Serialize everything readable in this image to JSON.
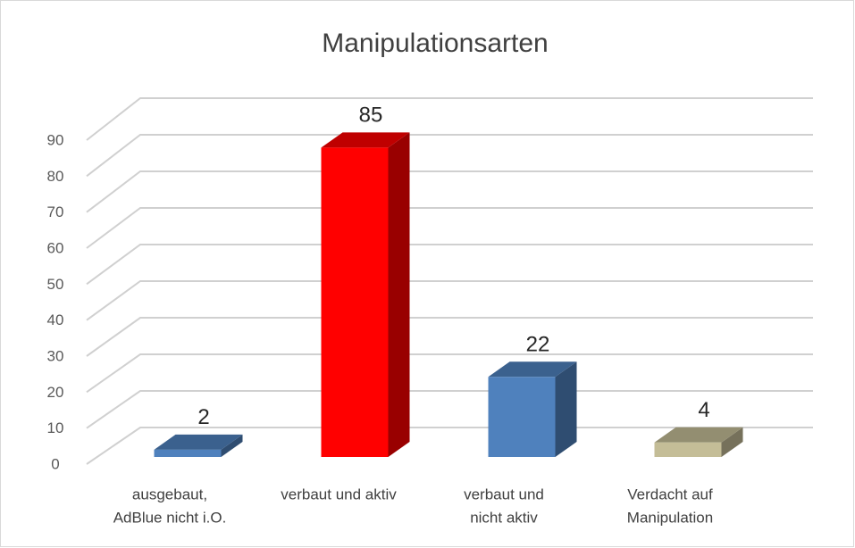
{
  "chart_data": {
    "type": "bar3d",
    "title": "Manipulationsarten",
    "categories": [
      [
        "ausgebaut,",
        "AdBlue nicht i.O."
      ],
      [
        "verbaut und aktiv"
      ],
      [
        "verbaut und",
        "nicht aktiv"
      ],
      [
        "Verdacht auf",
        "Manipulation"
      ]
    ],
    "values": [
      2,
      85,
      22,
      4
    ],
    "colors": [
      "#4f81bd",
      "#ff0000",
      "#4f81bd",
      "#c4bd97"
    ],
    "ylim": [
      0,
      90
    ],
    "yticks": [
      0,
      10,
      20,
      30,
      40,
      50,
      60,
      70,
      80,
      90
    ],
    "grid": true
  }
}
